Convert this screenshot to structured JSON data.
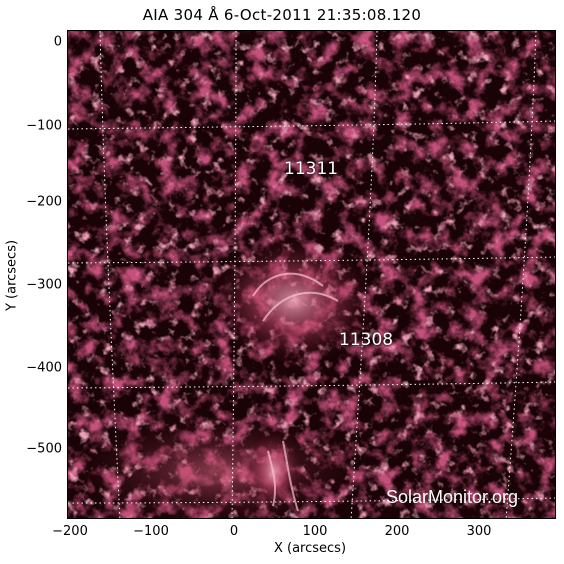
{
  "title": "AIA 304 Å  6-Oct-2011 21:35:08.120",
  "axes": {
    "xlabel": "X (arcsecs)",
    "ylabel": "Y (arcsecs)",
    "x_ticks": [
      "−200",
      "−100",
      "0",
      "100",
      "200",
      "300"
    ],
    "y_ticks": [
      "0",
      "−100",
      "−200",
      "−300",
      "−400",
      "−500"
    ]
  },
  "regions": [
    {
      "label": "11311"
    },
    {
      "label": "11308"
    }
  ],
  "watermark": "SolarMonitor.org",
  "colors": {
    "background": "#1a0306",
    "plasma_dim": "#5a0f22",
    "plasma_mid": "#9b2547",
    "plasma_bright": "#e58aa4",
    "grid": "#ffffff"
  }
}
